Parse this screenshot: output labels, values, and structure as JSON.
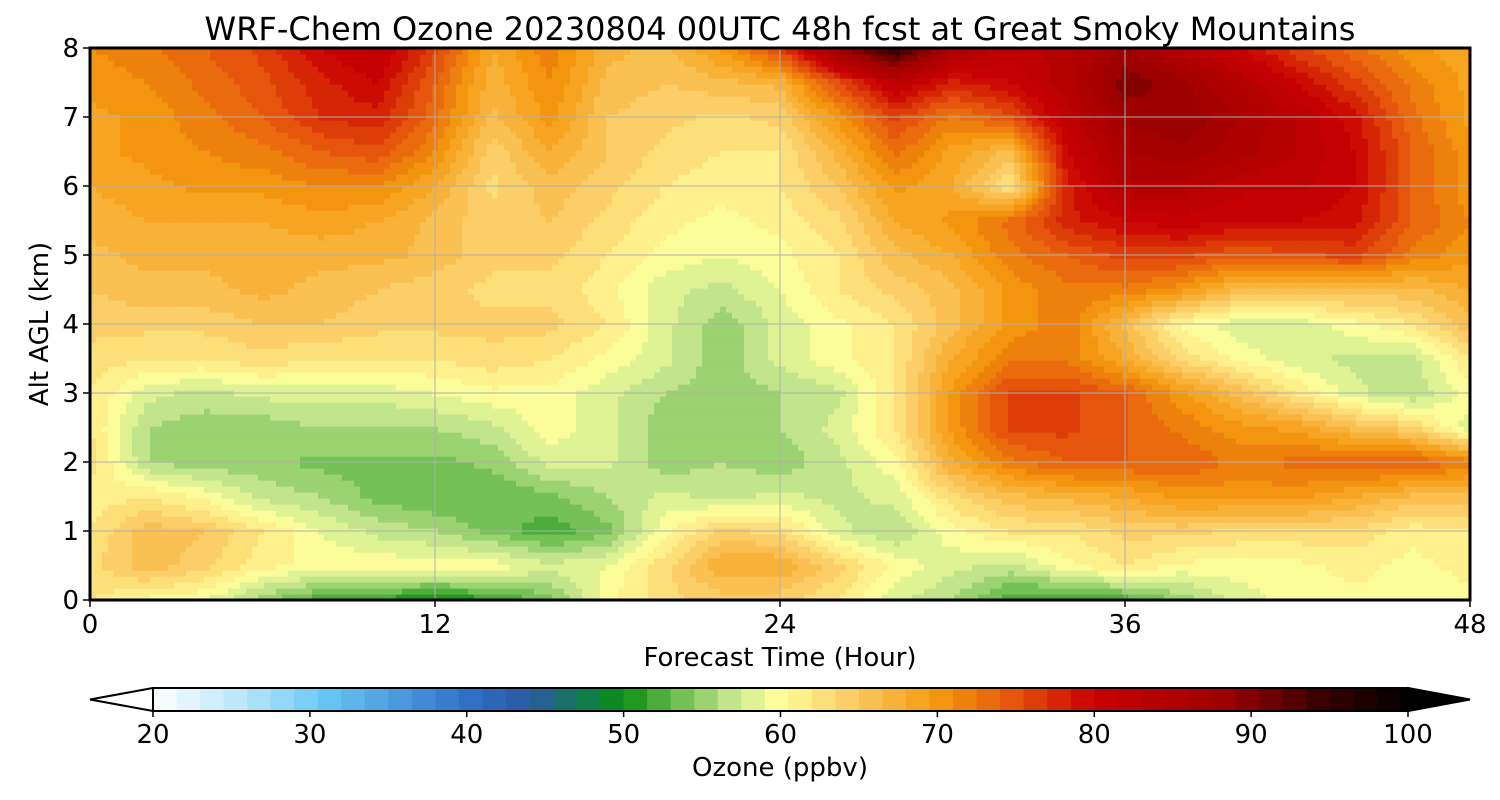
{
  "chart_data": {
    "type": "heatmap",
    "title": "WRF-Chem Ozone  20230804 00UTC 48h fcst at Great Smoky Mountains",
    "xlabel": "Forecast Time (Hour)",
    "ylabel": "Alt AGL (km)",
    "xlim": [
      0,
      48
    ],
    "ylim": [
      0,
      8
    ],
    "x_ticks": [
      "0",
      "12",
      "24",
      "36",
      "48"
    ],
    "y_ticks": [
      "0",
      "1",
      "2",
      "3",
      "4",
      "5",
      "6",
      "7",
      "8"
    ],
    "grid": true,
    "x_hours": [
      0,
      2,
      4,
      6,
      8,
      10,
      12,
      14,
      16,
      18,
      20,
      22,
      24,
      26,
      28,
      30,
      32,
      34,
      36,
      38,
      40,
      42,
      44,
      46,
      48
    ],
    "alt_km": [
      0,
      0.5,
      1,
      1.5,
      2,
      2.5,
      3,
      3.5,
      4,
      4.5,
      5,
      5.5,
      6,
      6.5,
      7,
      7.5,
      8
    ],
    "ozone_ppbv": [
      [
        62,
        60,
        59,
        55,
        52,
        51,
        50,
        51,
        54,
        60,
        63,
        64,
        64,
        62,
        58,
        56,
        52,
        51,
        52,
        55,
        58,
        60,
        60,
        60,
        60
      ],
      [
        63,
        66,
        64,
        61,
        60,
        60,
        60,
        60,
        58,
        59,
        63,
        68,
        68,
        64,
        60,
        58,
        57,
        60,
        62,
        60,
        60,
        60,
        61,
        60,
        61
      ],
      [
        62,
        66,
        65,
        62,
        59,
        57,
        56,
        54,
        52,
        54,
        60,
        64,
        63,
        58,
        56,
        60,
        62,
        62,
        64,
        64,
        63,
        63,
        63,
        61,
        62
      ],
      [
        61,
        62,
        60,
        57,
        56,
        54,
        53,
        53,
        54,
        56,
        58,
        57,
        58,
        57,
        58,
        63,
        66,
        67,
        68,
        70,
        70,
        70,
        68,
        66,
        66
      ],
      [
        63,
        56,
        55,
        55,
        54,
        54,
        54,
        55,
        58,
        58,
        55,
        56,
        55,
        57,
        60,
        68,
        72,
        74,
        74,
        74,
        72,
        73,
        74,
        74,
        72
      ],
      [
        62,
        56,
        55,
        55,
        56,
        56,
        56,
        57,
        60,
        58,
        55,
        55,
        56,
        58,
        62,
        70,
        76,
        76,
        74,
        72,
        70,
        69,
        66,
        64,
        58
      ],
      [
        62,
        58,
        57,
        58,
        58,
        58,
        59,
        60,
        60,
        58,
        56,
        55,
        56,
        57,
        62,
        70,
        76,
        76,
        74,
        70,
        66,
        62,
        58,
        56,
        60
      ],
      [
        63,
        62,
        62,
        63,
        62,
        62,
        62,
        63,
        62,
        60,
        58,
        55,
        58,
        60,
        62,
        68,
        72,
        72,
        68,
        63,
        60,
        58,
        57,
        57,
        62
      ],
      [
        64,
        64,
        64,
        65,
        65,
        64,
        64,
        64,
        64,
        62,
        58,
        55,
        58,
        60,
        62,
        66,
        70,
        72,
        66,
        60,
        58,
        58,
        60,
        62,
        66
      ],
      [
        65,
        66,
        66,
        67,
        66,
        65,
        64,
        63,
        63,
        61,
        58,
        57,
        59,
        62,
        64,
        66,
        70,
        72,
        72,
        70,
        66,
        66,
        66,
        66,
        68
      ],
      [
        66,
        67,
        67,
        67,
        67,
        67,
        66,
        64,
        64,
        62,
        60,
        59,
        60,
        62,
        66,
        68,
        72,
        74,
        76,
        76,
        74,
        75,
        76,
        72,
        70
      ],
      [
        67,
        68,
        68,
        68,
        69,
        68,
        66,
        64,
        65,
        63,
        61,
        60,
        61,
        63,
        68,
        70,
        73,
        78,
        80,
        81,
        80,
        80,
        79,
        74,
        71
      ],
      [
        68,
        69,
        70,
        70,
        71,
        71,
        68,
        63,
        66,
        64,
        62,
        61,
        62,
        65,
        70,
        68,
        62,
        78,
        84,
        84,
        82,
        82,
        80,
        74,
        70
      ],
      [
        69,
        70,
        71,
        72,
        74,
        75,
        71,
        64,
        68,
        65,
        63,
        62,
        62,
        67,
        73,
        69,
        66,
        80,
        86,
        87,
        85,
        83,
        80,
        74,
        70
      ],
      [
        69,
        70,
        72,
        74,
        77,
        78,
        73,
        66,
        70,
        65,
        64,
        63,
        64,
        70,
        76,
        72,
        75,
        82,
        88,
        89,
        86,
        83,
        79,
        73,
        69
      ],
      [
        70,
        71,
        73,
        75,
        78,
        80,
        74,
        67,
        71,
        66,
        65,
        66,
        67,
        75,
        82,
        78,
        80,
        84,
        90,
        88,
        84,
        80,
        76,
        72,
        69
      ],
      [
        71,
        72,
        74,
        76,
        80,
        82,
        76,
        68,
        72,
        67,
        66,
        70,
        76,
        88,
        96,
        86,
        82,
        84,
        88,
        84,
        80,
        76,
        73,
        70,
        68
      ]
    ],
    "colorbar": {
      "label": "Ozone  (ppbv)",
      "ticks": [
        "20",
        "30",
        "40",
        "50",
        "60",
        "70",
        "80",
        "90",
        "100"
      ],
      "min": 20,
      "max": 100,
      "extend": "both",
      "stops": [
        {
          "v": 20,
          "c": "#ffffff"
        },
        {
          "v": 26,
          "c": "#b5e4f8"
        },
        {
          "v": 31,
          "c": "#68c6f5"
        },
        {
          "v": 40,
          "c": "#3070c8"
        },
        {
          "v": 44,
          "c": "#2a5aa0"
        },
        {
          "v": 48,
          "c": "#0e8040"
        },
        {
          "v": 50,
          "c": "#0a8f10"
        },
        {
          "v": 53,
          "c": "#62b848"
        },
        {
          "v": 57,
          "c": "#c8e890"
        },
        {
          "v": 60,
          "c": "#ffff9a"
        },
        {
          "v": 64,
          "c": "#fcd06c"
        },
        {
          "v": 70,
          "c": "#f4980e"
        },
        {
          "v": 75,
          "c": "#e4520c"
        },
        {
          "v": 80,
          "c": "#c80000"
        },
        {
          "v": 88,
          "c": "#a00000"
        },
        {
          "v": 94,
          "c": "#400000"
        },
        {
          "v": 100,
          "c": "#000000"
        }
      ]
    }
  }
}
